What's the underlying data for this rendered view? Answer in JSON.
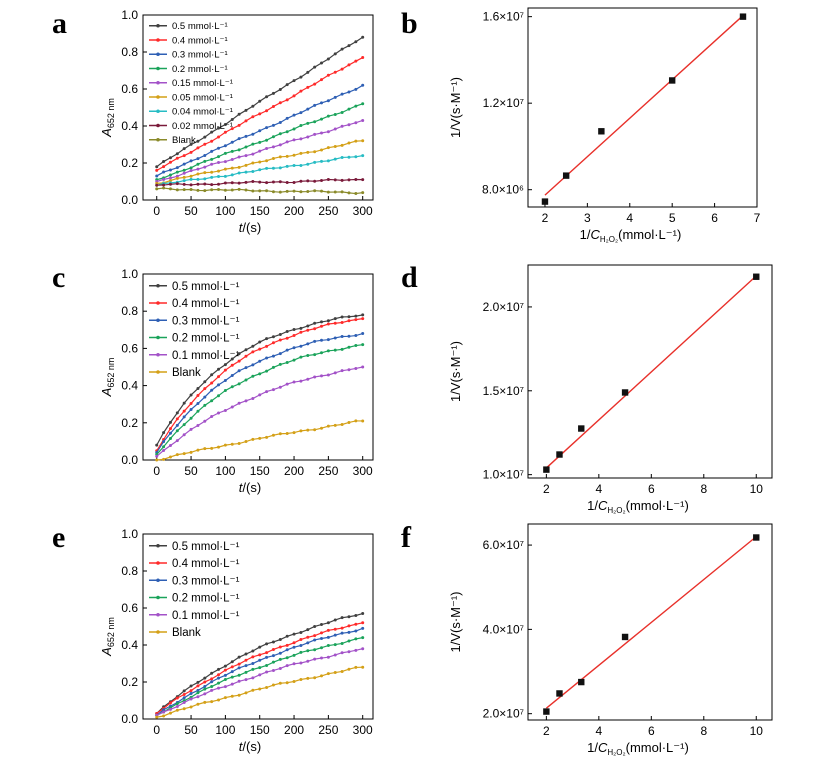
{
  "figure": {
    "panel_labels": [
      "a",
      "b",
      "c",
      "d",
      "e",
      "f"
    ],
    "axis_text": {
      "kin_xlabel_italic": "t",
      "kin_xlabel_rest": "/(s)",
      "kin_ylabel_italic": "A",
      "kin_ylabel_sub": "652 nm",
      "lw_ylabel": "1/V(s·M⁻¹)",
      "lw_xlabel_pre": "1/",
      "lw_xlabel_italic": "C",
      "lw_xlabel_sub": "H₂O₂",
      "lw_xlabel_post": "(mmol·L⁻¹)"
    }
  },
  "chart_data": [
    {
      "panel": "a",
      "type": "line",
      "x": [
        0,
        300
      ],
      "xlim": [
        -20,
        315
      ],
      "ylim": [
        0,
        1.0
      ],
      "xticks": [
        "0",
        "50",
        "100",
        "150",
        "200",
        "250",
        "300"
      ],
      "yticks": [
        "0.0",
        "0.2",
        "0.4",
        "0.6",
        "0.8",
        "1.0"
      ],
      "legend_position": "top-left",
      "legend_font": 9.5,
      "series": [
        {
          "name": "0.5 mmol·L⁻¹",
          "color": "#404040",
          "start": 0.18,
          "end": 0.88,
          "curv": 0
        },
        {
          "name": "0.4 mmol·L⁻¹",
          "color": "#ff2a2a",
          "start": 0.16,
          "end": 0.77,
          "curv": 0
        },
        {
          "name": "0.3 mmol·L⁻¹",
          "color": "#2e5fb4",
          "start": 0.13,
          "end": 0.62,
          "curv": 0
        },
        {
          "name": "0.2 mmol·L⁻¹",
          "color": "#1aa35a",
          "start": 0.11,
          "end": 0.52,
          "curv": 0
        },
        {
          "name": "0.15 mmol·L⁻¹",
          "color": "#a352c8",
          "start": 0.1,
          "end": 0.43,
          "curv": 0
        },
        {
          "name": "0.05 mmol·L⁻¹",
          "color": "#d4a017",
          "start": 0.09,
          "end": 0.32,
          "curv": 0
        },
        {
          "name": "0.04 mmol·L⁻¹",
          "color": "#27bcc4",
          "start": 0.08,
          "end": 0.24,
          "curv": 0
        },
        {
          "name": "0.02 mmol·L⁻¹",
          "color": "#7a1a3a",
          "start": 0.08,
          "end": 0.11,
          "curv": 0
        },
        {
          "name": "Blank",
          "color": "#8a8a2a",
          "start": 0.06,
          "end": 0.04,
          "curv": 0
        }
      ]
    },
    {
      "panel": "b",
      "type": "scatter",
      "xlim": [
        1.6,
        7
      ],
      "ylim": [
        7200000.0,
        16400000.0
      ],
      "xticks": [
        2,
        3,
        4,
        5,
        6,
        7
      ],
      "yticks": [
        8000000.0,
        12000000.0,
        16000000.0
      ],
      "ytick_labels": [
        "8.0×10⁶",
        "1.2×10⁷",
        "1.6×10⁷"
      ],
      "points_x": [
        2,
        2.5,
        3.33,
        5,
        6.67
      ],
      "points_y": [
        7450000.0,
        8650000.0,
        10700000.0,
        13050000.0,
        16000000.0
      ],
      "fit_line": {
        "x": [
          2,
          6.67
        ],
        "y": [
          7750000.0,
          16050000.0
        ],
        "color": "#e8302a"
      }
    },
    {
      "panel": "c",
      "type": "line",
      "xlim": [
        -20,
        315
      ],
      "ylim": [
        0,
        1.0
      ],
      "xticks": [
        "0",
        "50",
        "100",
        "150",
        "200",
        "250",
        "300"
      ],
      "yticks": [
        "0.0",
        "0.2",
        "0.4",
        "0.6",
        "0.8",
        "1.0"
      ],
      "legend_position": "top-left",
      "legend_font": 11.5,
      "series": [
        {
          "name": "0.5 mmol·L⁻¹",
          "color": "#404040",
          "start": 0.08,
          "end": 0.78,
          "curv": 2.6
        },
        {
          "name": "0.4 mmol·L⁻¹",
          "color": "#ff2a2a",
          "start": 0.05,
          "end": 0.76,
          "curv": 2.4
        },
        {
          "name": "0.3 mmol·L⁻¹",
          "color": "#2e5fb4",
          "start": 0.04,
          "end": 0.68,
          "curv": 2.4
        },
        {
          "name": "0.2 mmol·L⁻¹",
          "color": "#1aa35a",
          "start": 0.03,
          "end": 0.62,
          "curv": 2.1
        },
        {
          "name": "0.1 mmol·L⁻¹",
          "color": "#a352c8",
          "start": 0.02,
          "end": 0.5,
          "curv": 1.6
        },
        {
          "name": "Blank",
          "color": "#d4a017",
          "start": 0.0,
          "end": 0.21,
          "curv": 0.4
        }
      ]
    },
    {
      "panel": "d",
      "type": "scatter",
      "xlim": [
        1.3,
        10.6
      ],
      "ylim": [
        9800000.0,
        22500000.0
      ],
      "xticks": [
        2,
        4,
        6,
        8,
        10
      ],
      "yticks": [
        10000000.0,
        15000000.0,
        20000000.0
      ],
      "ytick_labels": [
        "1.0×10⁷",
        "1.5×10⁷",
        "2.0×10⁷"
      ],
      "points_x": [
        2,
        2.5,
        3.33,
        5,
        10
      ],
      "points_y": [
        10300000.0,
        11200000.0,
        12750000.0,
        14900000.0,
        21800000.0
      ],
      "fit_line": {
        "x": [
          2,
          10
        ],
        "y": [
          10400000.0,
          21850000.0
        ],
        "color": "#e8302a"
      }
    },
    {
      "panel": "e",
      "type": "line",
      "xlim": [
        -20,
        315
      ],
      "ylim": [
        0,
        1.0
      ],
      "xticks": [
        "0",
        "50",
        "100",
        "150",
        "200",
        "250",
        "300"
      ],
      "yticks": [
        "0.0",
        "0.2",
        "0.4",
        "0.6",
        "0.8",
        "1.0"
      ],
      "legend_position": "top-left",
      "legend_font": 11.5,
      "series": [
        {
          "name": "0.5 mmol·L⁻¹",
          "color": "#404040",
          "start": 0.03,
          "end": 0.57,
          "curv": 1.3
        },
        {
          "name": "0.4 mmol·L⁻¹",
          "color": "#ff2a2a",
          "start": 0.03,
          "end": 0.52,
          "curv": 1.2
        },
        {
          "name": "0.3 mmol·L⁻¹",
          "color": "#2e5fb4",
          "start": 0.02,
          "end": 0.49,
          "curv": 1.1
        },
        {
          "name": "0.2 mmol·L⁻¹",
          "color": "#1aa35a",
          "start": 0.02,
          "end": 0.44,
          "curv": 1.0
        },
        {
          "name": "0.1 mmol·L⁻¹",
          "color": "#a352c8",
          "start": 0.02,
          "end": 0.38,
          "curv": 0.9
        },
        {
          "name": "Blank",
          "color": "#d4a017",
          "start": 0.01,
          "end": 0.28,
          "curv": 0.5
        }
      ]
    },
    {
      "panel": "f",
      "type": "scatter",
      "xlim": [
        1.3,
        10.6
      ],
      "ylim": [
        18500000.0,
        65000000.0
      ],
      "xticks": [
        2,
        4,
        6,
        8,
        10
      ],
      "yticks": [
        20000000.0,
        40000000.0,
        60000000.0
      ],
      "ytick_labels": [
        "2.0×10⁷",
        "4.0×10⁷",
        "6.0×10⁷"
      ],
      "points_x": [
        2,
        2.5,
        3.33,
        5,
        10
      ],
      "points_y": [
        20500000.0,
        24800000.0,
        27500000.0,
        38200000.0,
        61800000.0
      ],
      "fit_line": {
        "x": [
          2,
          10
        ],
        "y": [
          21300000.0,
          62000000.0
        ],
        "color": "#e8302a"
      }
    }
  ]
}
